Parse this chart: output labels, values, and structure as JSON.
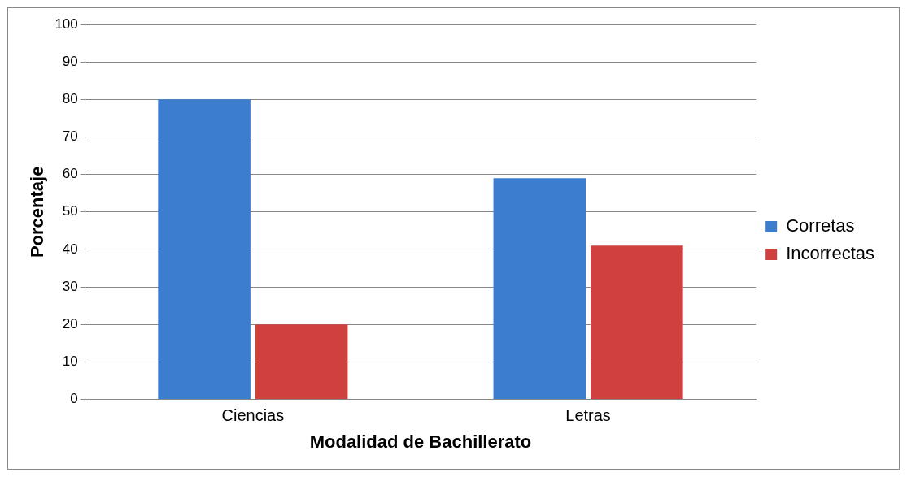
{
  "chart_data": {
    "type": "bar",
    "xlabel": "Modalidad de Bachillerato",
    "ylabel": "Porcentaje",
    "categories": [
      "Ciencias",
      "Letras"
    ],
    "series": [
      {
        "name": "Corretas",
        "color": "#3c7dd0",
        "values": [
          80,
          59
        ]
      },
      {
        "name": "Incorrectas",
        "color": "#d0403f",
        "values": [
          20,
          41
        ]
      }
    ],
    "ylim": [
      0,
      100
    ],
    "yticks": [
      0,
      10,
      20,
      30,
      40,
      50,
      60,
      70,
      80,
      90,
      100
    ],
    "grid": "y",
    "legend": "right"
  }
}
